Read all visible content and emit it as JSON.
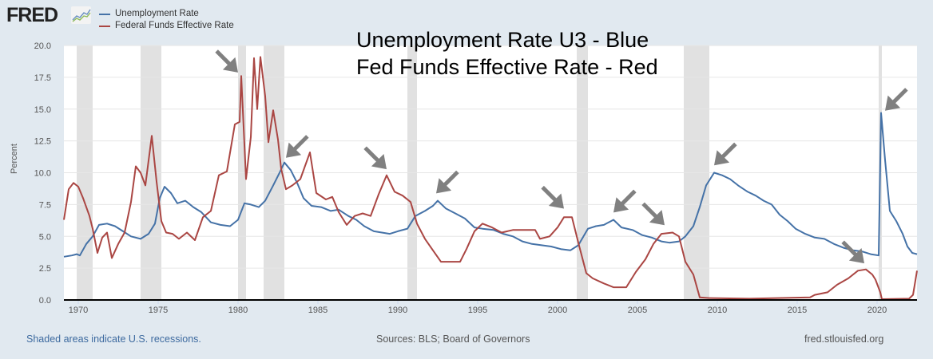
{
  "header": {
    "logo_text": "FRED",
    "annotation_line1": "Unemployment Rate U3 - Blue",
    "annotation_line2": "Fed Funds Effective Rate - Red"
  },
  "footer": {
    "recession_note": "Shaded areas indicate U.S. recessions.",
    "sources": "Sources: BLS; Board of Governors",
    "site": "fred.stlouisfed.org"
  },
  "colors": {
    "unemployment": "#4572a7",
    "fedfunds": "#aa4643",
    "recession": "#e1e1e1",
    "arrow": "#808080"
  },
  "chart_data": {
    "type": "line",
    "title": "",
    "xlabel": "",
    "ylabel": "Percent",
    "xlim": [
      1969.1,
      2022.5
    ],
    "ylim": [
      0,
      20
    ],
    "yticks": [
      "0.0",
      "2.5",
      "5.0",
      "7.5",
      "10.0",
      "12.5",
      "15.0",
      "17.5",
      "20.0"
    ],
    "xticks": [
      "1970",
      "1975",
      "1980",
      "1985",
      "1990",
      "1995",
      "2000",
      "2005",
      "2010",
      "2015",
      "2020"
    ],
    "grid": true,
    "legend_position": "top-left",
    "legend": [
      "Unemployment Rate",
      "Federal Funds Effective Rate"
    ],
    "recessions": [
      [
        1969.9,
        1970.9
      ],
      [
        1973.9,
        1975.2
      ],
      [
        1980.0,
        1980.5
      ],
      [
        1981.6,
        1982.9
      ],
      [
        1990.6,
        1991.2
      ],
      [
        2001.2,
        2001.9
      ],
      [
        2007.9,
        2009.5
      ],
      [
        2020.1,
        2020.3
      ]
    ],
    "series": [
      {
        "name": "Unemployment Rate",
        "points": [
          [
            1969.1,
            3.4
          ],
          [
            1969.6,
            3.5
          ],
          [
            1969.9,
            3.6
          ],
          [
            1970.1,
            3.5
          ],
          [
            1970.5,
            4.4
          ],
          [
            1970.9,
            5.0
          ],
          [
            1971.3,
            5.9
          ],
          [
            1971.8,
            6.0
          ],
          [
            1972.3,
            5.8
          ],
          [
            1972.8,
            5.4
          ],
          [
            1973.3,
            5.0
          ],
          [
            1973.9,
            4.8
          ],
          [
            1974.4,
            5.2
          ],
          [
            1974.8,
            6.0
          ],
          [
            1975.1,
            8.0
          ],
          [
            1975.4,
            8.9
          ],
          [
            1975.8,
            8.4
          ],
          [
            1976.2,
            7.6
          ],
          [
            1976.7,
            7.8
          ],
          [
            1977.2,
            7.3
          ],
          [
            1977.7,
            6.9
          ],
          [
            1978.3,
            6.1
          ],
          [
            1978.9,
            5.9
          ],
          [
            1979.5,
            5.8
          ],
          [
            1980.0,
            6.3
          ],
          [
            1980.4,
            7.6
          ],
          [
            1980.8,
            7.5
          ],
          [
            1981.3,
            7.3
          ],
          [
            1981.7,
            7.8
          ],
          [
            1982.2,
            9.0
          ],
          [
            1982.6,
            10.0
          ],
          [
            1982.9,
            10.8
          ],
          [
            1983.3,
            10.2
          ],
          [
            1983.7,
            9.2
          ],
          [
            1984.1,
            8.0
          ],
          [
            1984.6,
            7.4
          ],
          [
            1985.2,
            7.3
          ],
          [
            1985.8,
            7.0
          ],
          [
            1986.3,
            7.1
          ],
          [
            1986.9,
            6.6
          ],
          [
            1987.4,
            6.3
          ],
          [
            1987.9,
            5.8
          ],
          [
            1988.5,
            5.4
          ],
          [
            1989.0,
            5.3
          ],
          [
            1989.5,
            5.2
          ],
          [
            1990.0,
            5.4
          ],
          [
            1990.6,
            5.6
          ],
          [
            1991.1,
            6.6
          ],
          [
            1991.7,
            7.0
          ],
          [
            1992.2,
            7.4
          ],
          [
            1992.5,
            7.8
          ],
          [
            1993.0,
            7.2
          ],
          [
            1993.6,
            6.8
          ],
          [
            1994.2,
            6.4
          ],
          [
            1994.8,
            5.7
          ],
          [
            1995.3,
            5.6
          ],
          [
            1996.0,
            5.5
          ],
          [
            1996.6,
            5.2
          ],
          [
            1997.2,
            5.0
          ],
          [
            1997.8,
            4.6
          ],
          [
            1998.4,
            4.4
          ],
          [
            1999.0,
            4.3
          ],
          [
            1999.6,
            4.2
          ],
          [
            2000.2,
            4.0
          ],
          [
            2000.8,
            3.9
          ],
          [
            2001.3,
            4.3
          ],
          [
            2001.9,
            5.6
          ],
          [
            2002.4,
            5.8
          ],
          [
            2002.9,
            5.9
          ],
          [
            2003.5,
            6.3
          ],
          [
            2004.0,
            5.7
          ],
          [
            2004.7,
            5.5
          ],
          [
            2005.3,
            5.1
          ],
          [
            2005.9,
            4.9
          ],
          [
            2006.5,
            4.6
          ],
          [
            2007.0,
            4.5
          ],
          [
            2007.6,
            4.6
          ],
          [
            2008.0,
            5.0
          ],
          [
            2008.5,
            5.8
          ],
          [
            2008.9,
            7.3
          ],
          [
            2009.3,
            9.0
          ],
          [
            2009.8,
            10.0
          ],
          [
            2010.3,
            9.8
          ],
          [
            2010.8,
            9.5
          ],
          [
            2011.3,
            9.0
          ],
          [
            2011.9,
            8.5
          ],
          [
            2012.4,
            8.2
          ],
          [
            2012.9,
            7.8
          ],
          [
            2013.4,
            7.5
          ],
          [
            2013.9,
            6.7
          ],
          [
            2014.4,
            6.2
          ],
          [
            2014.9,
            5.6
          ],
          [
            2015.5,
            5.2
          ],
          [
            2016.1,
            4.9
          ],
          [
            2016.7,
            4.8
          ],
          [
            2017.3,
            4.4
          ],
          [
            2017.9,
            4.1
          ],
          [
            2018.5,
            3.9
          ],
          [
            2019.1,
            3.8
          ],
          [
            2019.6,
            3.6
          ],
          [
            2020.1,
            3.5
          ],
          [
            2020.25,
            14.7
          ],
          [
            2020.5,
            11.0
          ],
          [
            2020.8,
            7.0
          ],
          [
            2021.2,
            6.2
          ],
          [
            2021.6,
            5.2
          ],
          [
            2021.9,
            4.2
          ],
          [
            2022.2,
            3.7
          ],
          [
            2022.5,
            3.6
          ]
        ]
      },
      {
        "name": "Federal Funds Effective Rate",
        "points": [
          [
            1969.1,
            6.3
          ],
          [
            1969.4,
            8.7
          ],
          [
            1969.7,
            9.2
          ],
          [
            1970.0,
            8.9
          ],
          [
            1970.3,
            8.0
          ],
          [
            1970.7,
            6.6
          ],
          [
            1970.9,
            5.6
          ],
          [
            1971.2,
            3.7
          ],
          [
            1971.5,
            4.9
          ],
          [
            1971.8,
            5.3
          ],
          [
            1972.1,
            3.3
          ],
          [
            1972.5,
            4.4
          ],
          [
            1972.9,
            5.3
          ],
          [
            1973.3,
            7.7
          ],
          [
            1973.6,
            10.5
          ],
          [
            1973.9,
            10.0
          ],
          [
            1974.2,
            9.0
          ],
          [
            1974.6,
            12.9
          ],
          [
            1974.9,
            9.3
          ],
          [
            1975.2,
            6.2
          ],
          [
            1975.5,
            5.3
          ],
          [
            1975.9,
            5.2
          ],
          [
            1976.3,
            4.8
          ],
          [
            1976.8,
            5.3
          ],
          [
            1977.3,
            4.7
          ],
          [
            1977.8,
            6.5
          ],
          [
            1978.3,
            7.0
          ],
          [
            1978.8,
            9.8
          ],
          [
            1979.3,
            10.1
          ],
          [
            1979.8,
            13.8
          ],
          [
            1980.1,
            14.0
          ],
          [
            1980.2,
            17.6
          ],
          [
            1980.5,
            9.5
          ],
          [
            1980.8,
            12.8
          ],
          [
            1981.0,
            19.0
          ],
          [
            1981.2,
            15.0
          ],
          [
            1981.4,
            19.1
          ],
          [
            1981.7,
            16.0
          ],
          [
            1981.9,
            12.4
          ],
          [
            1982.2,
            14.9
          ],
          [
            1982.5,
            12.6
          ],
          [
            1982.7,
            10.3
          ],
          [
            1983.0,
            8.7
          ],
          [
            1983.4,
            9.0
          ],
          [
            1983.9,
            9.5
          ],
          [
            1984.5,
            11.6
          ],
          [
            1984.9,
            8.4
          ],
          [
            1985.5,
            7.9
          ],
          [
            1985.9,
            8.1
          ],
          [
            1986.3,
            6.9
          ],
          [
            1986.8,
            5.9
          ],
          [
            1987.3,
            6.6
          ],
          [
            1987.8,
            6.8
          ],
          [
            1988.3,
            6.6
          ],
          [
            1988.8,
            8.3
          ],
          [
            1989.3,
            9.8
          ],
          [
            1989.8,
            8.5
          ],
          [
            1990.3,
            8.2
          ],
          [
            1990.8,
            7.7
          ],
          [
            1991.2,
            6.0
          ],
          [
            1991.7,
            4.8
          ],
          [
            1992.2,
            3.9
          ],
          [
            1992.7,
            3.0
          ],
          [
            1993.3,
            3.0
          ],
          [
            1993.9,
            3.0
          ],
          [
            1994.3,
            4.0
          ],
          [
            1994.8,
            5.4
          ],
          [
            1995.3,
            6.0
          ],
          [
            1995.9,
            5.7
          ],
          [
            1996.5,
            5.3
          ],
          [
            1997.2,
            5.5
          ],
          [
            1997.8,
            5.5
          ],
          [
            1998.6,
            5.5
          ],
          [
            1998.9,
            4.8
          ],
          [
            1999.5,
            5.0
          ],
          [
            2000.0,
            5.7
          ],
          [
            2000.4,
            6.5
          ],
          [
            2000.9,
            6.5
          ],
          [
            2001.3,
            4.5
          ],
          [
            2001.8,
            2.1
          ],
          [
            2002.2,
            1.7
          ],
          [
            2002.9,
            1.3
          ],
          [
            2003.5,
            1.0
          ],
          [
            2004.3,
            1.0
          ],
          [
            2004.9,
            2.2
          ],
          [
            2005.5,
            3.2
          ],
          [
            2006.0,
            4.4
          ],
          [
            2006.5,
            5.2
          ],
          [
            2007.2,
            5.3
          ],
          [
            2007.6,
            5.0
          ],
          [
            2008.0,
            3.0
          ],
          [
            2008.5,
            2.0
          ],
          [
            2008.9,
            0.2
          ],
          [
            2009.5,
            0.15
          ],
          [
            2012.0,
            0.1
          ],
          [
            2015.8,
            0.2
          ],
          [
            2016.1,
            0.4
          ],
          [
            2016.9,
            0.6
          ],
          [
            2017.5,
            1.2
          ],
          [
            2018.2,
            1.7
          ],
          [
            2018.8,
            2.3
          ],
          [
            2019.3,
            2.4
          ],
          [
            2019.7,
            2.0
          ],
          [
            2019.9,
            1.6
          ],
          [
            2020.2,
            0.6
          ],
          [
            2020.3,
            0.06
          ],
          [
            2021.0,
            0.08
          ],
          [
            2022.0,
            0.1
          ],
          [
            2022.25,
            0.4
          ],
          [
            2022.5,
            2.3
          ]
        ]
      }
    ],
    "arrows": [
      [
        1980.0,
        17.5
      ],
      [
        1983.0,
        10.8
      ],
      [
        1989.3,
        9.9
      ],
      [
        1992.4,
        8.0
      ],
      [
        2000.4,
        6.8
      ],
      [
        2003.5,
        6.5
      ],
      [
        2006.7,
        5.5
      ],
      [
        2009.8,
        10.2
      ],
      [
        2019.2,
        2.5
      ],
      [
        2020.5,
        14.5
      ]
    ]
  }
}
